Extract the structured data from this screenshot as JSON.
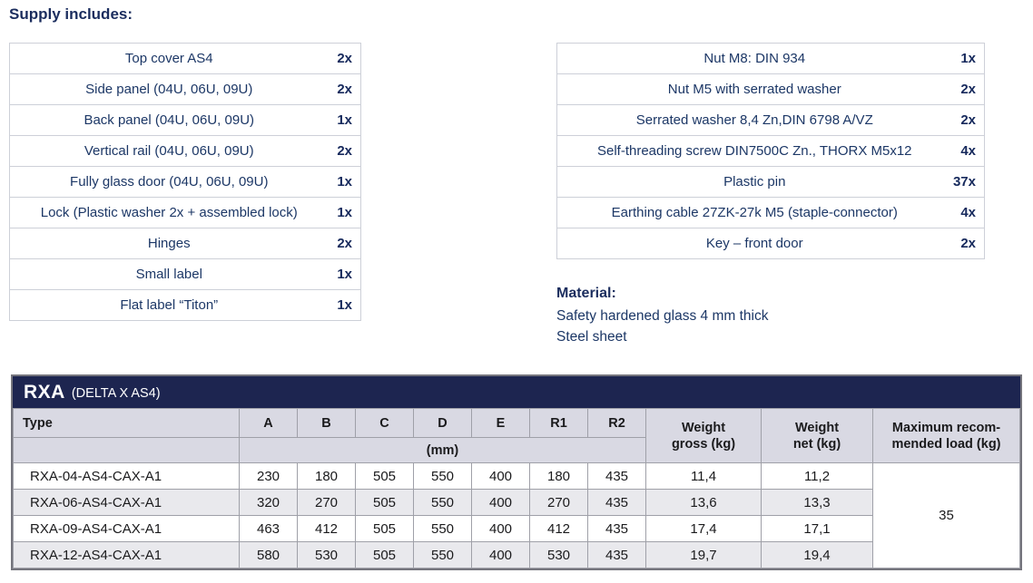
{
  "heading": "Supply includes:",
  "supply_left": {
    "items": [
      {
        "name": "Top cover AS4",
        "qty": "2x"
      },
      {
        "name": "Side panel (04U, 06U, 09U)",
        "qty": "2x"
      },
      {
        "name": "Back panel (04U, 06U, 09U)",
        "qty": "1x"
      },
      {
        "name": "Vertical rail (04U, 06U, 09U)",
        "qty": "2x"
      },
      {
        "name": "Fully glass door (04U, 06U, 09U)",
        "qty": "1x"
      },
      {
        "name": "Lock (Plastic washer 2x + assembled lock)",
        "qty": "1x"
      },
      {
        "name": "Hinges",
        "qty": "2x"
      },
      {
        "name": "Small label",
        "qty": "1x"
      },
      {
        "name": "Flat label “Titon”",
        "qty": "1x"
      }
    ]
  },
  "supply_right": {
    "items": [
      {
        "name": "Nut M8: DIN 934",
        "qty": "1x"
      },
      {
        "name": "Nut M5 with serrated washer",
        "qty": "2x"
      },
      {
        "name": "Serrated washer 8,4 Zn,DIN 6798 A/VZ",
        "qty": "2x"
      },
      {
        "name": "Self-threading screw DIN7500C Zn., THORX M5x12",
        "qty": "4x"
      },
      {
        "name": "Plastic pin",
        "qty": "37x"
      },
      {
        "name": "Earthing cable 27ZK-27k M5 (staple-connector)",
        "qty": "4x"
      },
      {
        "name": "Key – front door",
        "qty": "2x"
      }
    ]
  },
  "material": {
    "title": "Material:",
    "lines": [
      "Safety hardened glass 4 mm thick",
      "Steel sheet"
    ]
  },
  "rxa": {
    "title": "RXA",
    "subtitle": "(DELTA X AS4)",
    "type_label": "Type",
    "dims": [
      "A",
      "B",
      "C",
      "D",
      "E",
      "R1",
      "R2"
    ],
    "unit_label": "(mm)",
    "gross_label": [
      "Weight",
      "gross (kg)"
    ],
    "net_label": [
      "Weight",
      "net (kg)"
    ],
    "max_label": [
      "Maximum recom-",
      "mended load (kg)"
    ],
    "rows": [
      {
        "type": "RXA-04-AS4-CAX-A1",
        "dims": [
          "230",
          "180",
          "505",
          "550",
          "400",
          "180",
          "435"
        ],
        "gross": "11,4",
        "net": "11,2"
      },
      {
        "type": "RXA-06-AS4-CAX-A1",
        "dims": [
          "320",
          "270",
          "505",
          "550",
          "400",
          "270",
          "435"
        ],
        "gross": "13,6",
        "net": "13,3"
      },
      {
        "type": "RXA-09-AS4-CAX-A1",
        "dims": [
          "463",
          "412",
          "505",
          "550",
          "400",
          "412",
          "435"
        ],
        "gross": "17,4",
        "net": "17,1"
      },
      {
        "type": "RXA-12-AS4-CAX-A1",
        "dims": [
          "580",
          "530",
          "505",
          "550",
          "400",
          "530",
          "435"
        ],
        "gross": "19,7",
        "net": "19,4"
      }
    ],
    "max_load": "35"
  },
  "colors": {
    "navy_text": "#1c3766",
    "navy_heading": "#1b2d5e",
    "navy_bar": "#1d2550",
    "header_bg": "#d9d9e3",
    "alt_row_bg": "#e9e9ed",
    "supply_border": "#cdd0d8",
    "grid_border": "#9fa0a8",
    "outer_border": "#75757d"
  }
}
